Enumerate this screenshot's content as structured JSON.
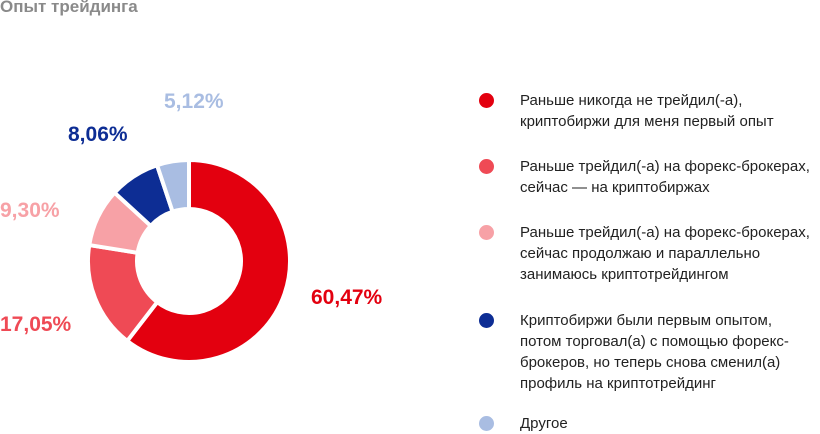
{
  "title": "Опыт трейдинга",
  "chart_data": {
    "type": "pie",
    "slices": [
      {
        "label": "Раньше никогда не трейдил(-а), криптобиржи для меня первый опыт",
        "value": 60.47,
        "value_label": "60,47%",
        "color": "#e3000f"
      },
      {
        "label": "Раньше трейдил(-а) на форекс-брокерах, сейчас — на криптобиржах",
        "value": 17.05,
        "value_label": "17,05%",
        "color": "#ef4a55"
      },
      {
        "label": "Раньше трейдил(-а) на форекс-брокерах, сейчас продолжаю и параллельно занимаюсь криптотрейдингом",
        "value": 9.3,
        "value_label": "9,30%",
        "color": "#f7a1a6"
      },
      {
        "label": "Криптобиржи были первым опытом, потом торговал(а) с помощью форекс-брокеров, но теперь снова сменил(а) профиль на криптотрейдинг",
        "value": 8.06,
        "value_label": "8,06%",
        "color": "#0d2d94"
      },
      {
        "label": "Другое",
        "value": 5.12,
        "value_label": "5,12%",
        "color": "#a9bde2"
      }
    ]
  },
  "legend": [
    {
      "lines": [
        "Раньше никогда не трейдил(-а),",
        "криптобиржи для меня первый опыт"
      ],
      "color": "#e3000f"
    },
    {
      "lines": [
        "Раньше трейдил(-а) на форекс-брокерах,",
        "сейчас — на криптобиржах"
      ],
      "color": "#ef4a55"
    },
    {
      "lines": [
        "Раньше трейдил(-а) на форекс-брокерах,",
        "сейчас продолжаю и параллельно",
        "занимаюсь криптотрейдингом"
      ],
      "color": "#f7a1a6"
    },
    {
      "lines": [
        "Криптобиржи были первым опытом,",
        "потом торговал(а) с помощью форекс-",
        "брокеров, но теперь снова сменил(а)",
        "профиль на криптотрейдинг"
      ],
      "color": "#0d2d94"
    },
    {
      "lines": [
        "Другое"
      ],
      "color": "#a9bde2"
    }
  ]
}
